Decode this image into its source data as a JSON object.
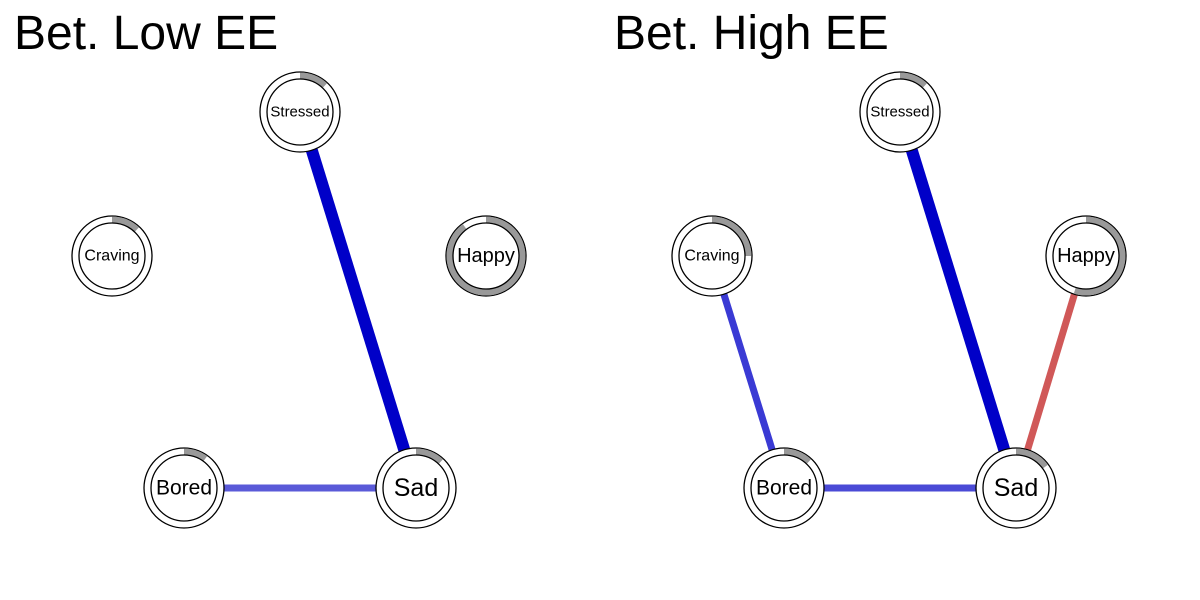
{
  "panels": [
    {
      "title": "Bet. Low EE",
      "nodes": [
        {
          "id": "stressed",
          "label": "Stressed",
          "pie": 0.12
        },
        {
          "id": "craving",
          "label": "Craving",
          "pie": 0.12
        },
        {
          "id": "happy",
          "label": "Happy",
          "pie": 0.9
        },
        {
          "id": "bored",
          "label": "Bored",
          "pie": 0.1
        },
        {
          "id": "sad",
          "label": "Sad",
          "pie": 0.12
        }
      ],
      "edges": [
        {
          "from": "stressed",
          "to": "sad",
          "weight": "strong",
          "sign": "positive",
          "color": "#0000C8"
        },
        {
          "from": "bored",
          "to": "sad",
          "weight": "moderate",
          "sign": "positive",
          "color": "#5A5AD8"
        }
      ]
    },
    {
      "title": "Bet. High EE",
      "nodes": [
        {
          "id": "stressed",
          "label": "Stressed",
          "pie": 0.12
        },
        {
          "id": "craving",
          "label": "Craving",
          "pie": 0.25
        },
        {
          "id": "happy",
          "label": "Happy",
          "pie": 0.55
        },
        {
          "id": "bored",
          "label": "Bored",
          "pie": 0.12
        },
        {
          "id": "sad",
          "label": "Sad",
          "pie": 0.15
        }
      ],
      "edges": [
        {
          "from": "stressed",
          "to": "sad",
          "weight": "strong",
          "sign": "positive",
          "color": "#0000C8"
        },
        {
          "from": "craving",
          "to": "bored",
          "weight": "moderate",
          "sign": "positive",
          "color": "#3A3AD4"
        },
        {
          "from": "bored",
          "to": "sad",
          "weight": "moderate",
          "sign": "positive",
          "color": "#4A4AD6"
        },
        {
          "from": "happy",
          "to": "sad",
          "weight": "moderate",
          "sign": "negative",
          "color": "#D05858"
        }
      ]
    }
  ]
}
